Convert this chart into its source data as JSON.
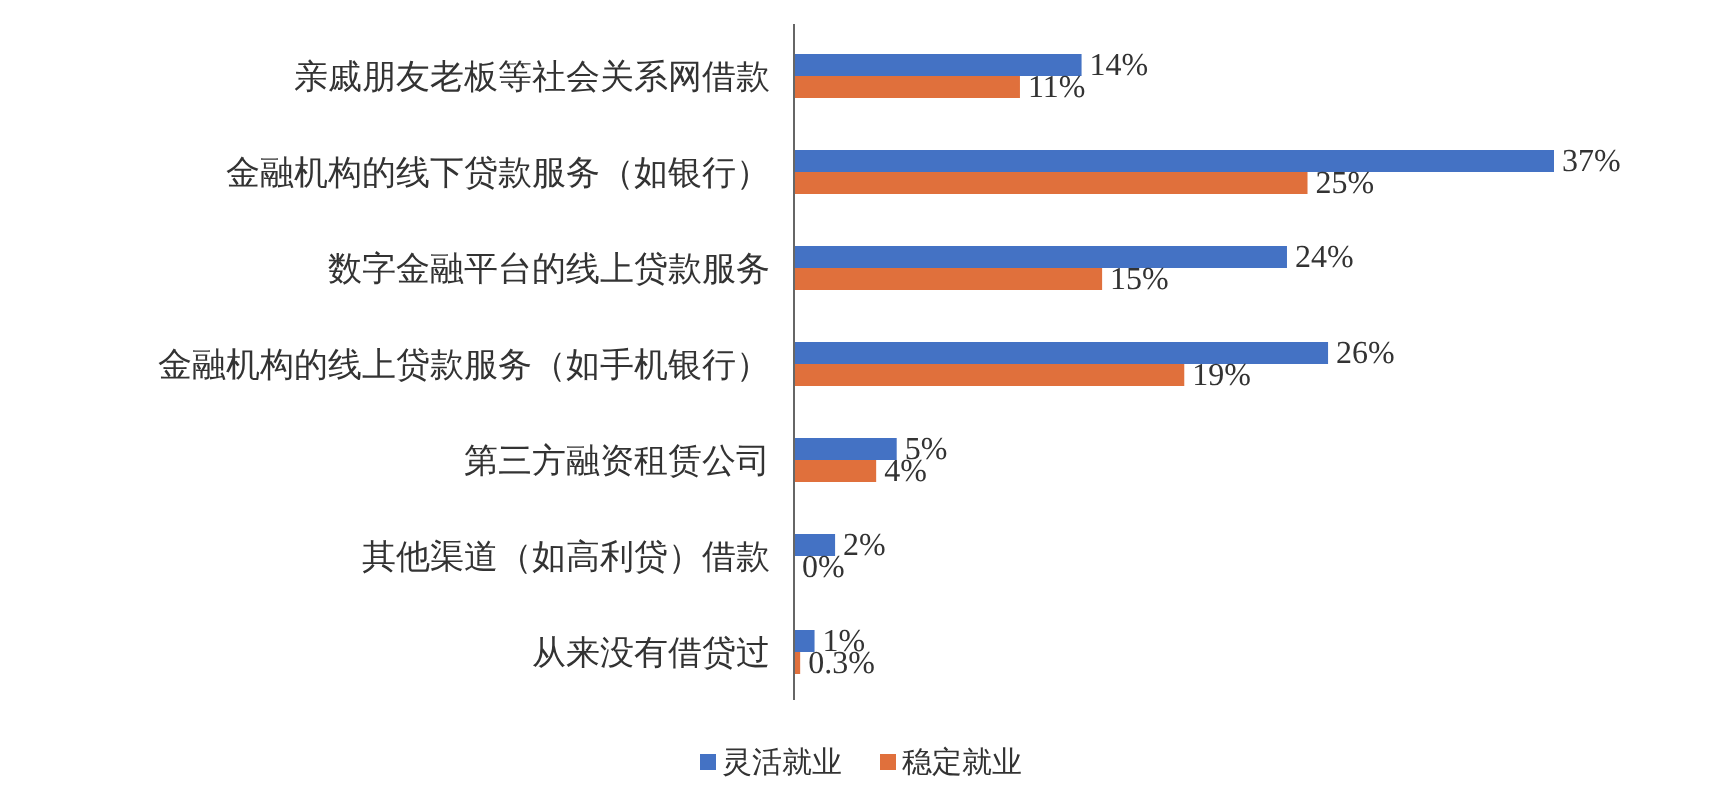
{
  "chart_data": {
    "type": "bar",
    "orientation": "horizontal",
    "categories": [
      "亲戚朋友老板等社会关系网借款",
      "金融机构的线下贷款服务（如银行）",
      "数字金融平台的线上贷款服务",
      "金融机构的线上贷款服务（如手机银行）",
      "第三方融资租赁公司",
      "其他渠道（如高利贷）借款",
      "从来没有借贷过"
    ],
    "series": [
      {
        "name": "灵活就业",
        "color": "#4472c4",
        "values": [
          14,
          37,
          24,
          26,
          5,
          2,
          1
        ],
        "value_labels": [
          "14%",
          "37%",
          "24%",
          "26%",
          "5%",
          "2%",
          "1%"
        ]
      },
      {
        "name": "稳定就业",
        "color": "#e0703c",
        "values": [
          11,
          25,
          15,
          19,
          4,
          0,
          0.3
        ],
        "value_labels": [
          "11%",
          "25%",
          "15%",
          "19%",
          "4%",
          "0%",
          "0.3%"
        ]
      }
    ],
    "legend": "bottom"
  }
}
